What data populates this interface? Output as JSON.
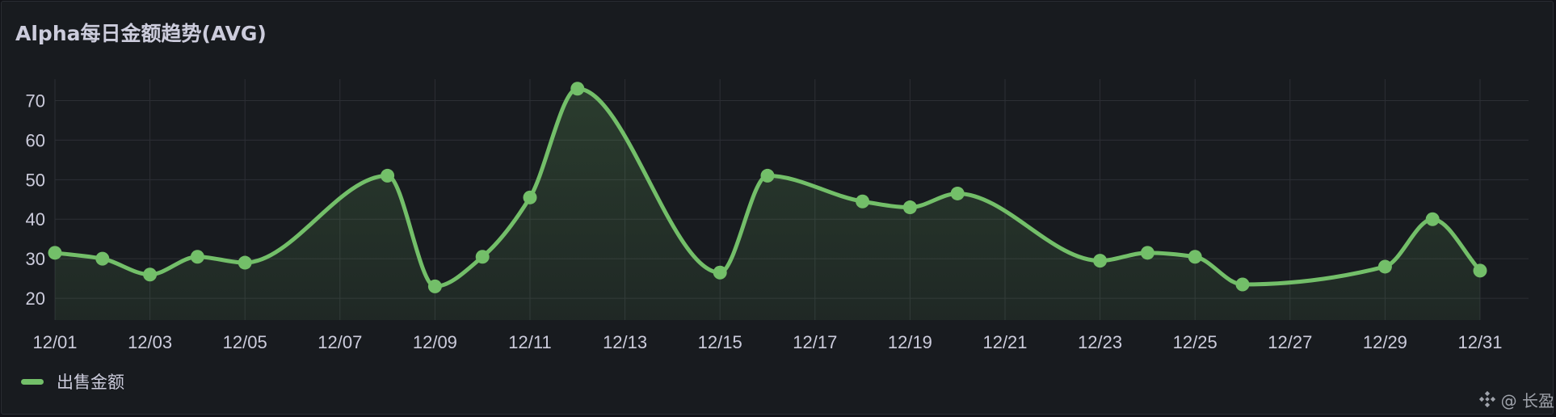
{
  "panel": {
    "title": "Alpha每日金额趋势(AVG)"
  },
  "watermark": {
    "text": "@ 长盈",
    "icon": "binance-diamond-logo"
  },
  "colors": {
    "background": "#111217",
    "panel": "#181b1f",
    "series": "#73bf69",
    "grid": "#2c2f35",
    "text": "#ccccdc"
  },
  "chart_data": {
    "type": "area",
    "title": "Alpha每日金额趋势(AVG)",
    "xlabel": "",
    "ylabel": "",
    "x": [
      "12/01",
      "12/02",
      "12/03",
      "12/04",
      "12/05",
      "12/06",
      "12/07",
      "12/08",
      "12/09",
      "12/10",
      "12/11",
      "12/12",
      "12/13",
      "12/14",
      "12/15",
      "12/16",
      "12/17",
      "12/18",
      "12/19",
      "12/20",
      "12/21",
      "12/22",
      "12/23",
      "12/24",
      "12/25",
      "12/26",
      "12/27",
      "12/28",
      "12/29",
      "12/30",
      "12/31"
    ],
    "x_tick_labels": [
      "12/01",
      "12/03",
      "12/05",
      "12/07",
      "12/09",
      "12/11",
      "12/13",
      "12/15",
      "12/17",
      "12/19",
      "12/21",
      "12/23",
      "12/25",
      "12/27",
      "12/29",
      "12/31"
    ],
    "y_ticks": [
      20,
      30,
      40,
      50,
      60,
      70
    ],
    "ylim": [
      14.5,
      75
    ],
    "grid": true,
    "legend_position": "bottom-left",
    "series": [
      {
        "name": "出售金额",
        "color": "#73bf69",
        "values": [
          31.5,
          30,
          26,
          30.5,
          29,
          null,
          null,
          51,
          23,
          30.5,
          45.5,
          73,
          null,
          null,
          26.5,
          51,
          null,
          44.5,
          43,
          46.5,
          null,
          null,
          29.5,
          31.5,
          30.5,
          23.5,
          null,
          null,
          28,
          40,
          27
        ]
      }
    ]
  }
}
